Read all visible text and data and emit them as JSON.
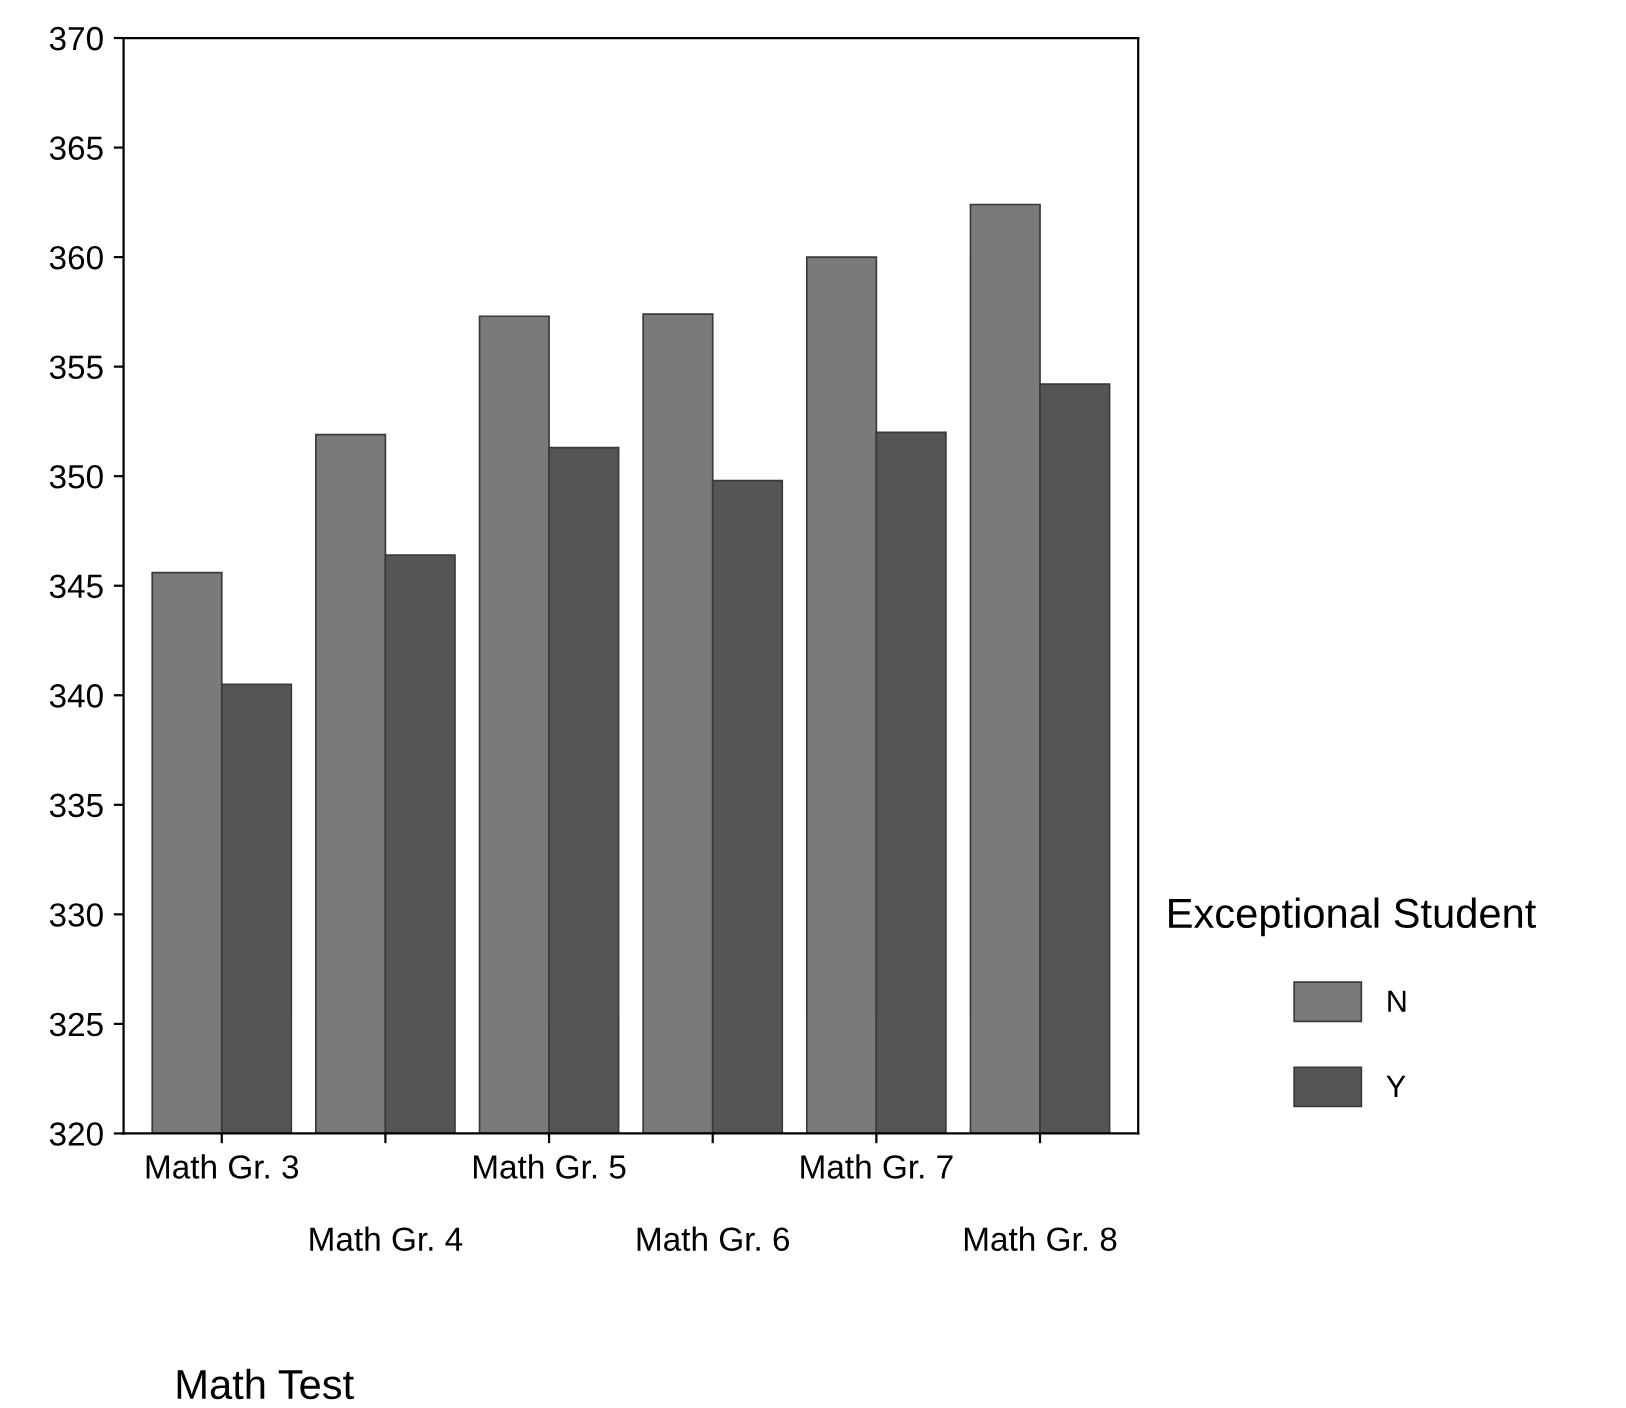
{
  "chart_data": {
    "type": "bar",
    "xlabel": "Math Test",
    "legend_title": "Exceptional Student",
    "categories": [
      "Math Gr. 3",
      "Math Gr. 4",
      "Math Gr. 5",
      "Math Gr. 6",
      "Math Gr. 7",
      "Math Gr. 8"
    ],
    "series": [
      {
        "name": "N",
        "color": "#7a7a7a",
        "values": [
          345.6,
          351.9,
          357.3,
          357.4,
          360.0,
          362.4
        ]
      },
      {
        "name": "Y",
        "color": "#555555",
        "values": [
          340.5,
          346.4,
          351.3,
          349.8,
          352.0,
          354.2
        ]
      }
    ],
    "ylim": [
      320,
      370
    ],
    "yticks": [
      320,
      325,
      330,
      335,
      340,
      345,
      350,
      355,
      360,
      365,
      370
    ],
    "grid": false,
    "legend": "right"
  }
}
